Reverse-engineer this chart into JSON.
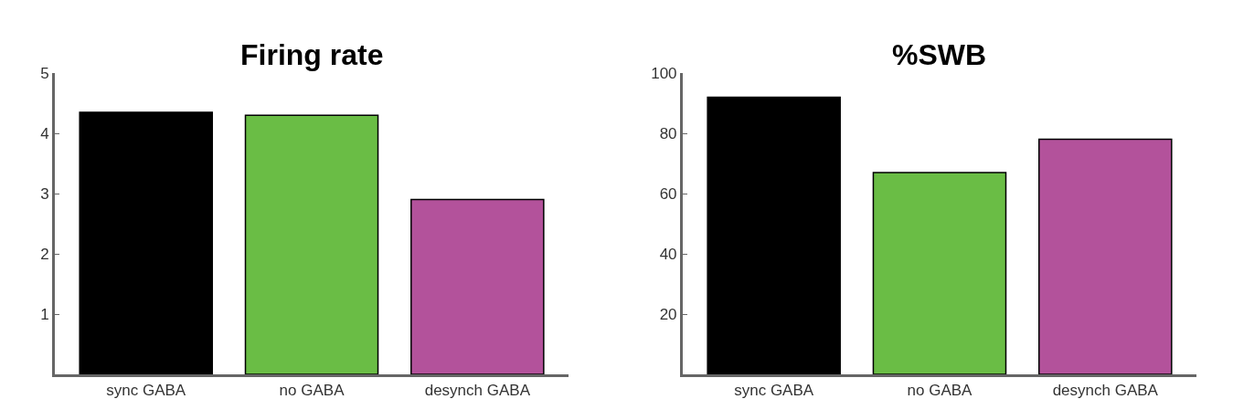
{
  "chart_data": [
    {
      "type": "bar",
      "title": "Firing rate",
      "categories": [
        "sync GABA",
        "no GABA",
        "desynch GABA"
      ],
      "values": [
        4.35,
        4.3,
        2.9
      ],
      "colors": [
        "#000000",
        "#6abd45",
        "#b3529b"
      ],
      "ylim": [
        0,
        5
      ],
      "yticks": [
        1,
        2,
        3,
        4,
        5
      ]
    },
    {
      "type": "bar",
      "title": "%SWB",
      "categories": [
        "sync GABA",
        "no GABA",
        "desynch GABA"
      ],
      "values": [
        92,
        67,
        78
      ],
      "colors": [
        "#000000",
        "#6abd45",
        "#b3529b"
      ],
      "ylim": [
        0,
        100
      ],
      "yticks": [
        20,
        40,
        60,
        80,
        100
      ]
    }
  ]
}
